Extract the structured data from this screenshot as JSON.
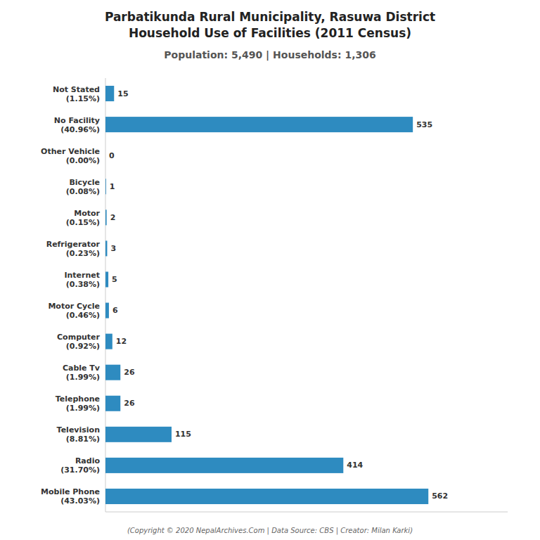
{
  "chart_data": {
    "type": "bar",
    "orientation": "horizontal",
    "title": "Parbatikunda Rural Municipality, Rasuwa District\nHousehold Use of Facilities (2011 Census)",
    "subtitle": "Population: 5,490 | Households: 1,306",
    "annotations": [
      "(Copyright © 2020 NepalArchives.Com | Data Source: CBS | Creator: Milan Karki)"
    ],
    "categories": [
      "Not Stated\n(1.15%)",
      "No Facility\n(40.96%)",
      "Other Vehicle\n(0.00%)",
      "Bicycle\n(0.08%)",
      "Motor\n(0.15%)",
      "Refrigerator\n(0.23%)",
      "Internet\n(0.38%)",
      "Motor Cycle\n(0.46%)",
      "Computer\n(0.92%)",
      "Cable Tv\n(1.99%)",
      "Telephone\n(1.99%)",
      "Television\n(8.81%)",
      "Radio\n(31.70%)",
      "Mobile Phone\n(43.03%)"
    ],
    "values": [
      15,
      535,
      0,
      1,
      2,
      3,
      5,
      6,
      12,
      26,
      26,
      115,
      414,
      562
    ],
    "color": "#2e8bc0",
    "xlim": [
      0,
      700
    ],
    "data_labels": true,
    "tick_labels": "y",
    "grid": false
  }
}
